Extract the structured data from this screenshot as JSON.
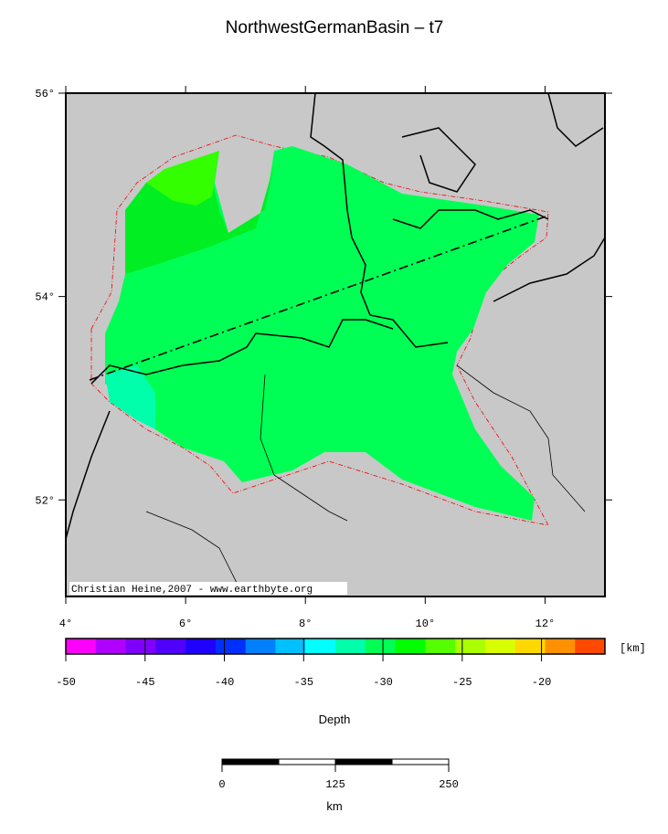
{
  "title": "NorthwestGermanBasin – t7",
  "map": {
    "xlim": [
      4,
      13
    ],
    "ylim": [
      51.05,
      56
    ],
    "xticks": [
      {
        "value": 4,
        "label": "4°"
      },
      {
        "value": 6,
        "label": "6°"
      },
      {
        "value": 8,
        "label": "8°"
      },
      {
        "value": 10,
        "label": "10°"
      },
      {
        "value": 12,
        "label": "12°"
      }
    ],
    "yticks": [
      {
        "value": 52,
        "label": "52°"
      },
      {
        "value": 54,
        "label": "54°"
      },
      {
        "value": 56,
        "label": "56°"
      }
    ],
    "credit": "Christian Heine,2007 - www.earthbyte.org"
  },
  "colorbar": {
    "label": "Depth",
    "unit": "[km]",
    "lim": [
      -50,
      -16
    ],
    "ticks": [
      -50,
      -45,
      -40,
      -35,
      -30,
      -25,
      -20
    ],
    "colors": [
      "#ff00ff",
      "#b000ff",
      "#8000ff",
      "#5000ff",
      "#2000ff",
      "#0030ff",
      "#0080ff",
      "#00c0ff",
      "#00ffff",
      "#00ffaa",
      "#00ff55",
      "#00ff00",
      "#55ff00",
      "#aaff00",
      "#d8ff00",
      "#ffd800",
      "#ff9000",
      "#ff4800"
    ]
  },
  "scalebar": {
    "ticks": [
      0,
      125,
      250
    ],
    "unit": "km"
  }
}
